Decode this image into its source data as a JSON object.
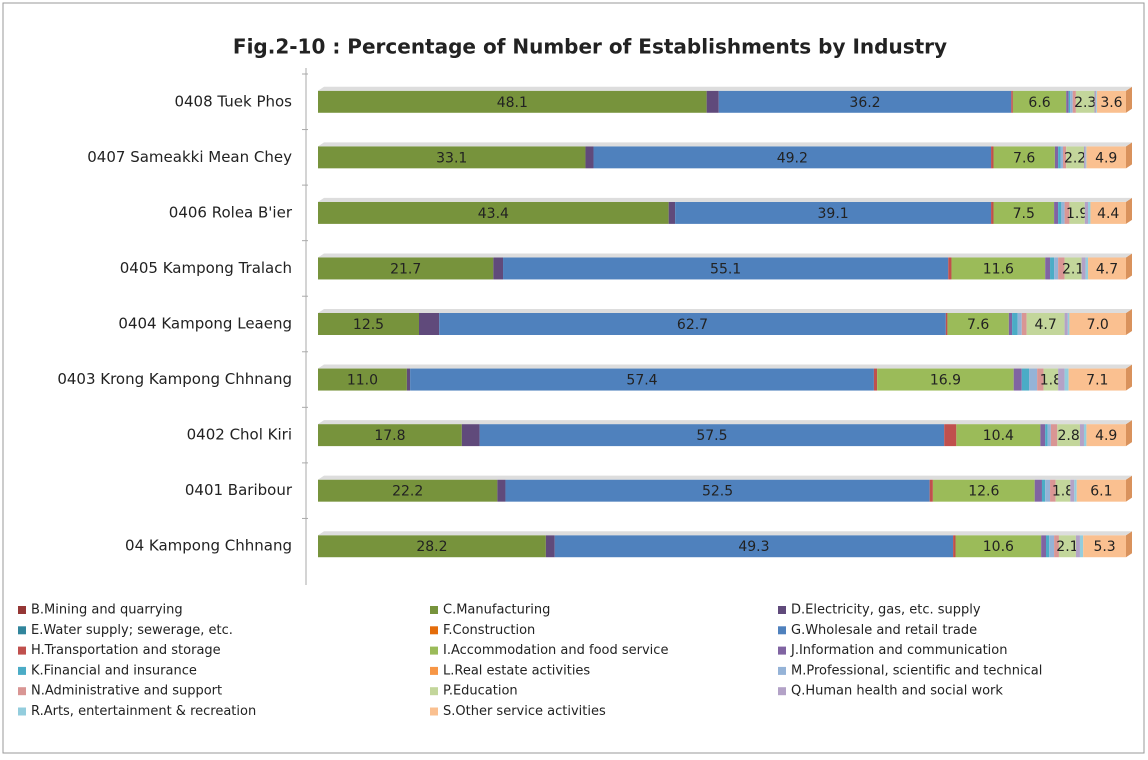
{
  "chart_data": {
    "type": "stacked-bar-horizontal",
    "title": "Fig.2-10 : Percentage of Number of Establishments by Industry",
    "categories": [
      "0408 Tuek Phos",
      "0407 Sameakki Mean Chey",
      "0406 Rolea B'ier",
      "0405 Kampong Tralach",
      "0404 Kampong Leaeng",
      "0403 Krong Kampong Chhnang",
      "0402 Chol Kiri",
      "0401 Baribour",
      "04  Kampong Chhnang"
    ],
    "xlim": [
      0,
      100
    ],
    "series": [
      {
        "name": "B.Mining and quarrying",
        "color": "#953735",
        "values": [
          0,
          0,
          0,
          0,
          0,
          0,
          0,
          0,
          0
        ]
      },
      {
        "name": "C.Manufacturing",
        "color": "#77933c",
        "values": [
          48.1,
          33.1,
          43.4,
          21.7,
          12.5,
          11.0,
          17.8,
          22.2,
          28.2
        ],
        "value_labels": [
          "48.1",
          "33.1",
          "43.4",
          "21.7",
          "12.5",
          "11.0",
          "17.8",
          "22.2",
          "28.2"
        ]
      },
      {
        "name": "D.Electricity, gas, etc. supply",
        "color": "#604a7b",
        "values": [
          1.5,
          1.0,
          0.8,
          1.2,
          2.5,
          0.4,
          2.2,
          1.0,
          1.1
        ]
      },
      {
        "name": "E.Water supply; sewerage, etc.",
        "color": "#31859c",
        "values": [
          0,
          0,
          0,
          0,
          0,
          0,
          0,
          0,
          0
        ]
      },
      {
        "name": "F.Construction",
        "color": "#e46c0a",
        "values": [
          0,
          0,
          0,
          0,
          0,
          0,
          0,
          0,
          0
        ]
      },
      {
        "name": "G.Wholesale and retail trade",
        "color": "#4f81bd",
        "values": [
          36.2,
          49.2,
          39.1,
          55.1,
          62.7,
          57.4,
          57.5,
          52.5,
          49.3
        ],
        "value_labels": [
          "36.2",
          "49.2",
          "39.1",
          "55.1",
          "62.7",
          "57.4",
          "57.5",
          "52.5",
          "49.3"
        ]
      },
      {
        "name": "H.Transportation and storage",
        "color": "#c0504d",
        "values": [
          0.2,
          0.3,
          0.3,
          0.4,
          0.2,
          0.4,
          1.5,
          0.4,
          0.3
        ]
      },
      {
        "name": "I.Accommodation and food service",
        "color": "#9bbb59",
        "values": [
          6.6,
          7.6,
          7.5,
          11.6,
          7.6,
          16.9,
          10.4,
          12.6,
          10.6
        ],
        "value_labels": [
          "6.6",
          "7.6",
          "7.5",
          "11.6",
          "7.6",
          "16.9",
          "10.4",
          "12.6",
          "10.6"
        ]
      },
      {
        "name": "J.Information and communication",
        "color": "#8064a2",
        "values": [
          0.3,
          0.4,
          0.5,
          0.6,
          0.4,
          1.0,
          0.6,
          0.9,
          0.6
        ]
      },
      {
        "name": "K.Financial and insurance",
        "color": "#4bacc6",
        "values": [
          0.2,
          0.3,
          0.4,
          0.5,
          0.7,
          0.9,
          0.3,
          0.4,
          0.4
        ]
      },
      {
        "name": "L.Real estate activities",
        "color": "#f79646",
        "values": [
          0,
          0,
          0,
          0,
          0,
          0,
          0,
          0,
          0
        ]
      },
      {
        "name": "M.Professional, scientific and technical",
        "color": "#95b3d7",
        "values": [
          0.3,
          0.3,
          0.4,
          0.5,
          0.5,
          1.0,
          0.4,
          0.6,
          0.6
        ]
      },
      {
        "name": "N.Administrative and support",
        "color": "#d99694",
        "values": [
          0.4,
          0.4,
          0.6,
          0.8,
          0.6,
          0.8,
          0.8,
          0.7,
          0.6
        ]
      },
      {
        "name": "P.Education",
        "color": "#c3d69b",
        "values": [
          2.3,
          2.2,
          1.9,
          2.1,
          4.7,
          1.8,
          2.8,
          1.8,
          2.1
        ],
        "value_labels": [
          "2.3",
          "2.2",
          "1.9",
          "2.1",
          "4.7",
          "1.8",
          "2.8",
          "1.8",
          "2.1"
        ]
      },
      {
        "name": "Q.Human health and social work",
        "color": "#b3a2c7",
        "values": [
          0.2,
          0.2,
          0.4,
          0.5,
          0.4,
          0.8,
          0.5,
          0.5,
          0.5
        ]
      },
      {
        "name": "R.Arts, entertainment & recreation",
        "color": "#93cddd",
        "values": [
          0.1,
          0.1,
          0.3,
          0.3,
          0.2,
          0.5,
          0.3,
          0.3,
          0.4
        ]
      },
      {
        "name": "S.Other service activities",
        "color": "#fac090",
        "values": [
          3.6,
          4.9,
          4.4,
          4.7,
          7.0,
          7.1,
          4.9,
          6.1,
          5.3
        ],
        "value_labels": [
          "3.6",
          "4.9",
          "4.4",
          "4.7",
          "7.0",
          "7.1",
          "4.9",
          "6.1",
          "5.3"
        ]
      }
    ]
  }
}
